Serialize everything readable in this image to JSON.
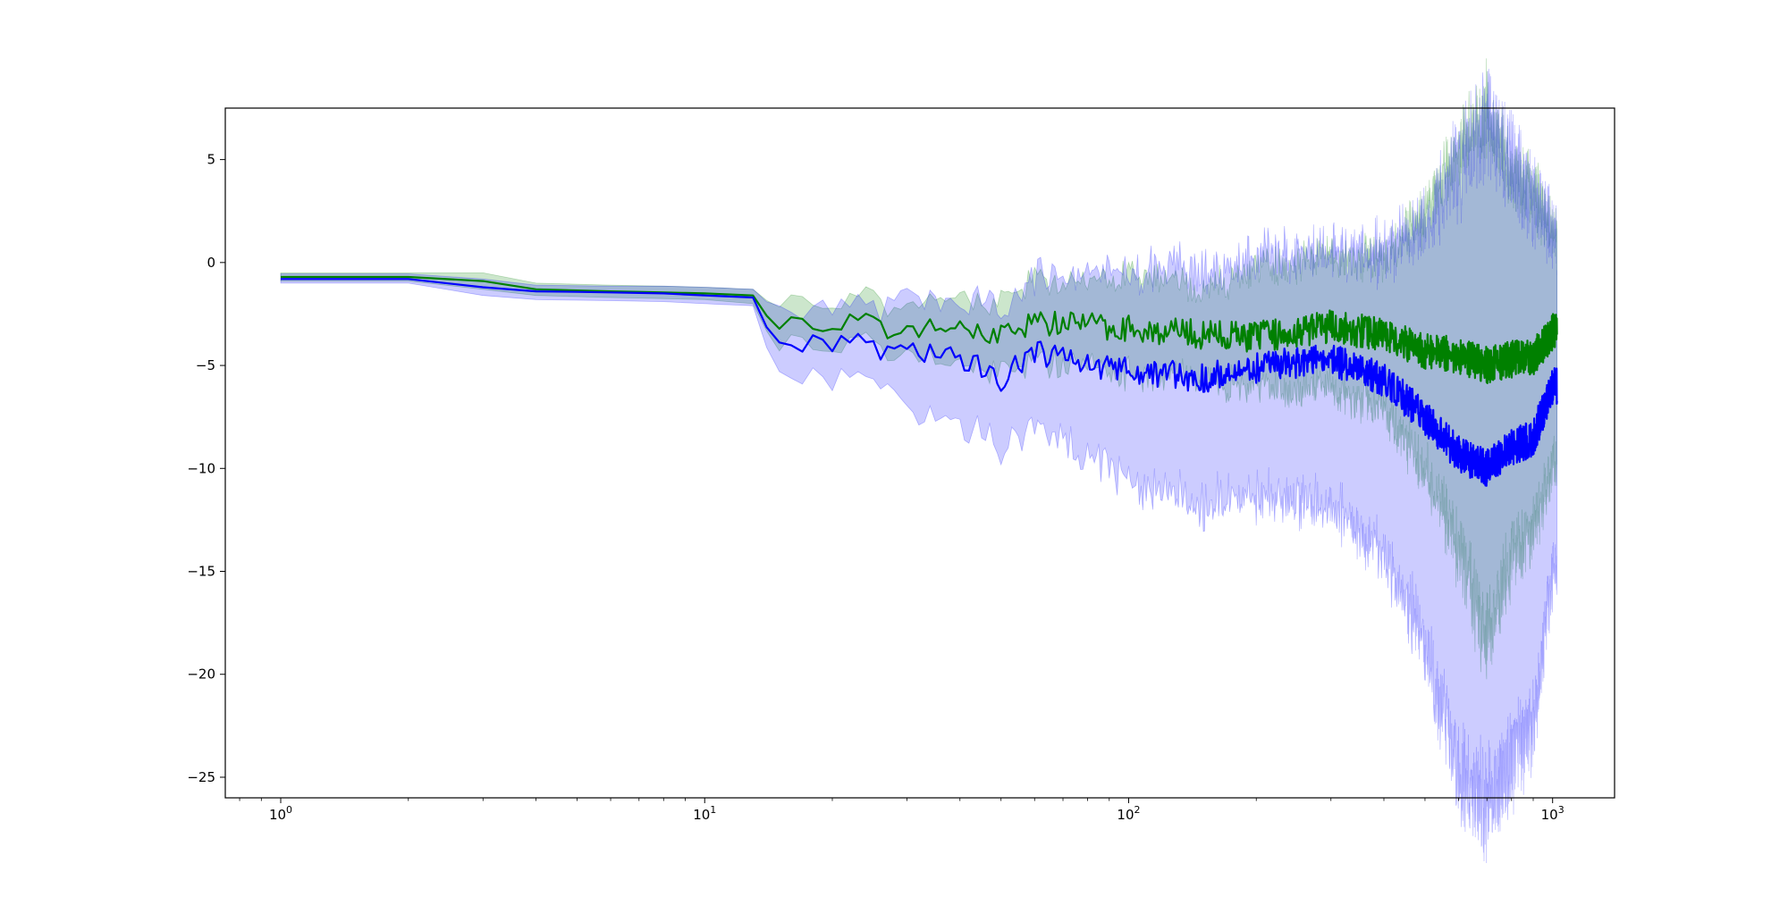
{
  "chart_data": {
    "type": "line",
    "title": "",
    "xlabel": "",
    "ylabel": "",
    "xscale": "log",
    "xlim": [
      0.74,
      1400
    ],
    "ylim": [
      -26,
      7.5
    ],
    "grid": false,
    "legend": "none",
    "x_ticks": [
      {
        "value": 1,
        "base": "10",
        "exp": "0"
      },
      {
        "value": 10,
        "base": "10",
        "exp": "1"
      },
      {
        "value": 100,
        "base": "10",
        "exp": "2"
      },
      {
        "value": 1000,
        "base": "10",
        "exp": "3"
      }
    ],
    "y_ticks": [
      {
        "value": 5,
        "label": "5"
      },
      {
        "value": 0,
        "label": "0"
      },
      {
        "value": -5,
        "label": "−5"
      },
      {
        "value": -10,
        "label": "−10"
      },
      {
        "value": -15,
        "label": "−15"
      },
      {
        "value": -20,
        "label": "−20"
      },
      {
        "value": -25,
        "label": "−25"
      }
    ],
    "series": [
      {
        "color": "#008000",
        "band_color": "#008000",
        "band_opacity": 0.2,
        "points": [
          [
            1,
            -0.7,
            -0.9,
            -0.5
          ],
          [
            2,
            -0.7,
            -0.9,
            -0.5
          ],
          [
            3,
            -0.9,
            -1.3,
            -0.5
          ],
          [
            4,
            -1.3,
            -1.6,
            -1.0
          ],
          [
            6,
            -1.4,
            -1.7,
            -1.1
          ],
          [
            8,
            -1.45,
            -1.75,
            -1.15
          ],
          [
            10,
            -1.5,
            -1.8,
            -1.2
          ],
          [
            13,
            -1.6,
            -2.0,
            -1.3
          ],
          [
            15,
            -2.8,
            -3.6,
            -2.0
          ],
          [
            17,
            -3.0,
            -3.8,
            -2.1
          ],
          [
            20,
            -3.0,
            -3.9,
            -2.2
          ],
          [
            24,
            -2.9,
            -3.7,
            -1.9
          ],
          [
            26,
            -3.3,
            -4.2,
            -2.3
          ],
          [
            30,
            -3.2,
            -4.3,
            -2.2
          ],
          [
            40,
            -3.3,
            -4.8,
            -2.0
          ],
          [
            50,
            -3.4,
            -4.9,
            -2.1
          ],
          [
            60,
            -2.9,
            -4.5,
            -1.1
          ],
          [
            80,
            -3.0,
            -4.8,
            -1.4
          ],
          [
            100,
            -3.2,
            -5.0,
            -0.8
          ],
          [
            150,
            -3.5,
            -5.3,
            -1.6
          ],
          [
            200,
            -3.6,
            -5.8,
            -0.9
          ],
          [
            300,
            -3.1,
            -5.6,
            -0.1
          ],
          [
            400,
            -3.5,
            -6.5,
            -0.4
          ],
          [
            500,
            -4.3,
            -9.2,
            1.5
          ],
          [
            600,
            -4.5,
            -12.5,
            4.0
          ],
          [
            700,
            -5.0,
            -16.5,
            5.3
          ],
          [
            800,
            -4.7,
            -13.0,
            3.0
          ],
          [
            900,
            -4.6,
            -12.0,
            2.2
          ],
          [
            1000,
            -3.4,
            -9.0,
            0.6
          ]
        ]
      },
      {
        "color": "#0000ff",
        "band_color": "#0000ff",
        "band_opacity": 0.2,
        "points": [
          [
            1,
            -0.8,
            -1.0,
            -0.55
          ],
          [
            2,
            -0.8,
            -1.0,
            -0.55
          ],
          [
            3,
            -1.2,
            -1.6,
            -0.8
          ],
          [
            4,
            -1.4,
            -1.8,
            -1.1
          ],
          [
            6,
            -1.45,
            -1.85,
            -1.15
          ],
          [
            8,
            -1.5,
            -1.9,
            -1.15
          ],
          [
            10,
            -1.6,
            -2.0,
            -1.2
          ],
          [
            13,
            -1.7,
            -2.1,
            -1.3
          ],
          [
            15,
            -3.8,
            -4.8,
            -2.3
          ],
          [
            17,
            -3.9,
            -5.3,
            -2.6
          ],
          [
            20,
            -4.0,
            -5.5,
            -2.5
          ],
          [
            24,
            -3.6,
            -5.2,
            -2.2
          ],
          [
            26,
            -4.7,
            -6.0,
            -3.0
          ],
          [
            30,
            -4.2,
            -6.8,
            -2.0
          ],
          [
            40,
            -4.6,
            -7.5,
            -2.5
          ],
          [
            50,
            -5.7,
            -8.4,
            -2.7
          ],
          [
            60,
            -4.3,
            -7.5,
            -1.3
          ],
          [
            80,
            -5.0,
            -8.8,
            -1.3
          ],
          [
            100,
            -5.2,
            -9.8,
            -1.0
          ],
          [
            150,
            -5.6,
            -10.8,
            -1.1
          ],
          [
            200,
            -5.1,
            -10.5,
            -0.6
          ],
          [
            300,
            -4.7,
            -11.0,
            -0.4
          ],
          [
            400,
            -5.7,
            -13.0,
            -0.6
          ],
          [
            500,
            -7.5,
            -17.0,
            0.3
          ],
          [
            600,
            -9.3,
            -22.5,
            2.5
          ],
          [
            700,
            -10.0,
            -24.0,
            4.5
          ],
          [
            800,
            -9.0,
            -22.0,
            2.5
          ],
          [
            900,
            -8.5,
            -20.5,
            1.5
          ],
          [
            1000,
            -6.0,
            -14.0,
            0.2
          ]
        ]
      }
    ]
  }
}
